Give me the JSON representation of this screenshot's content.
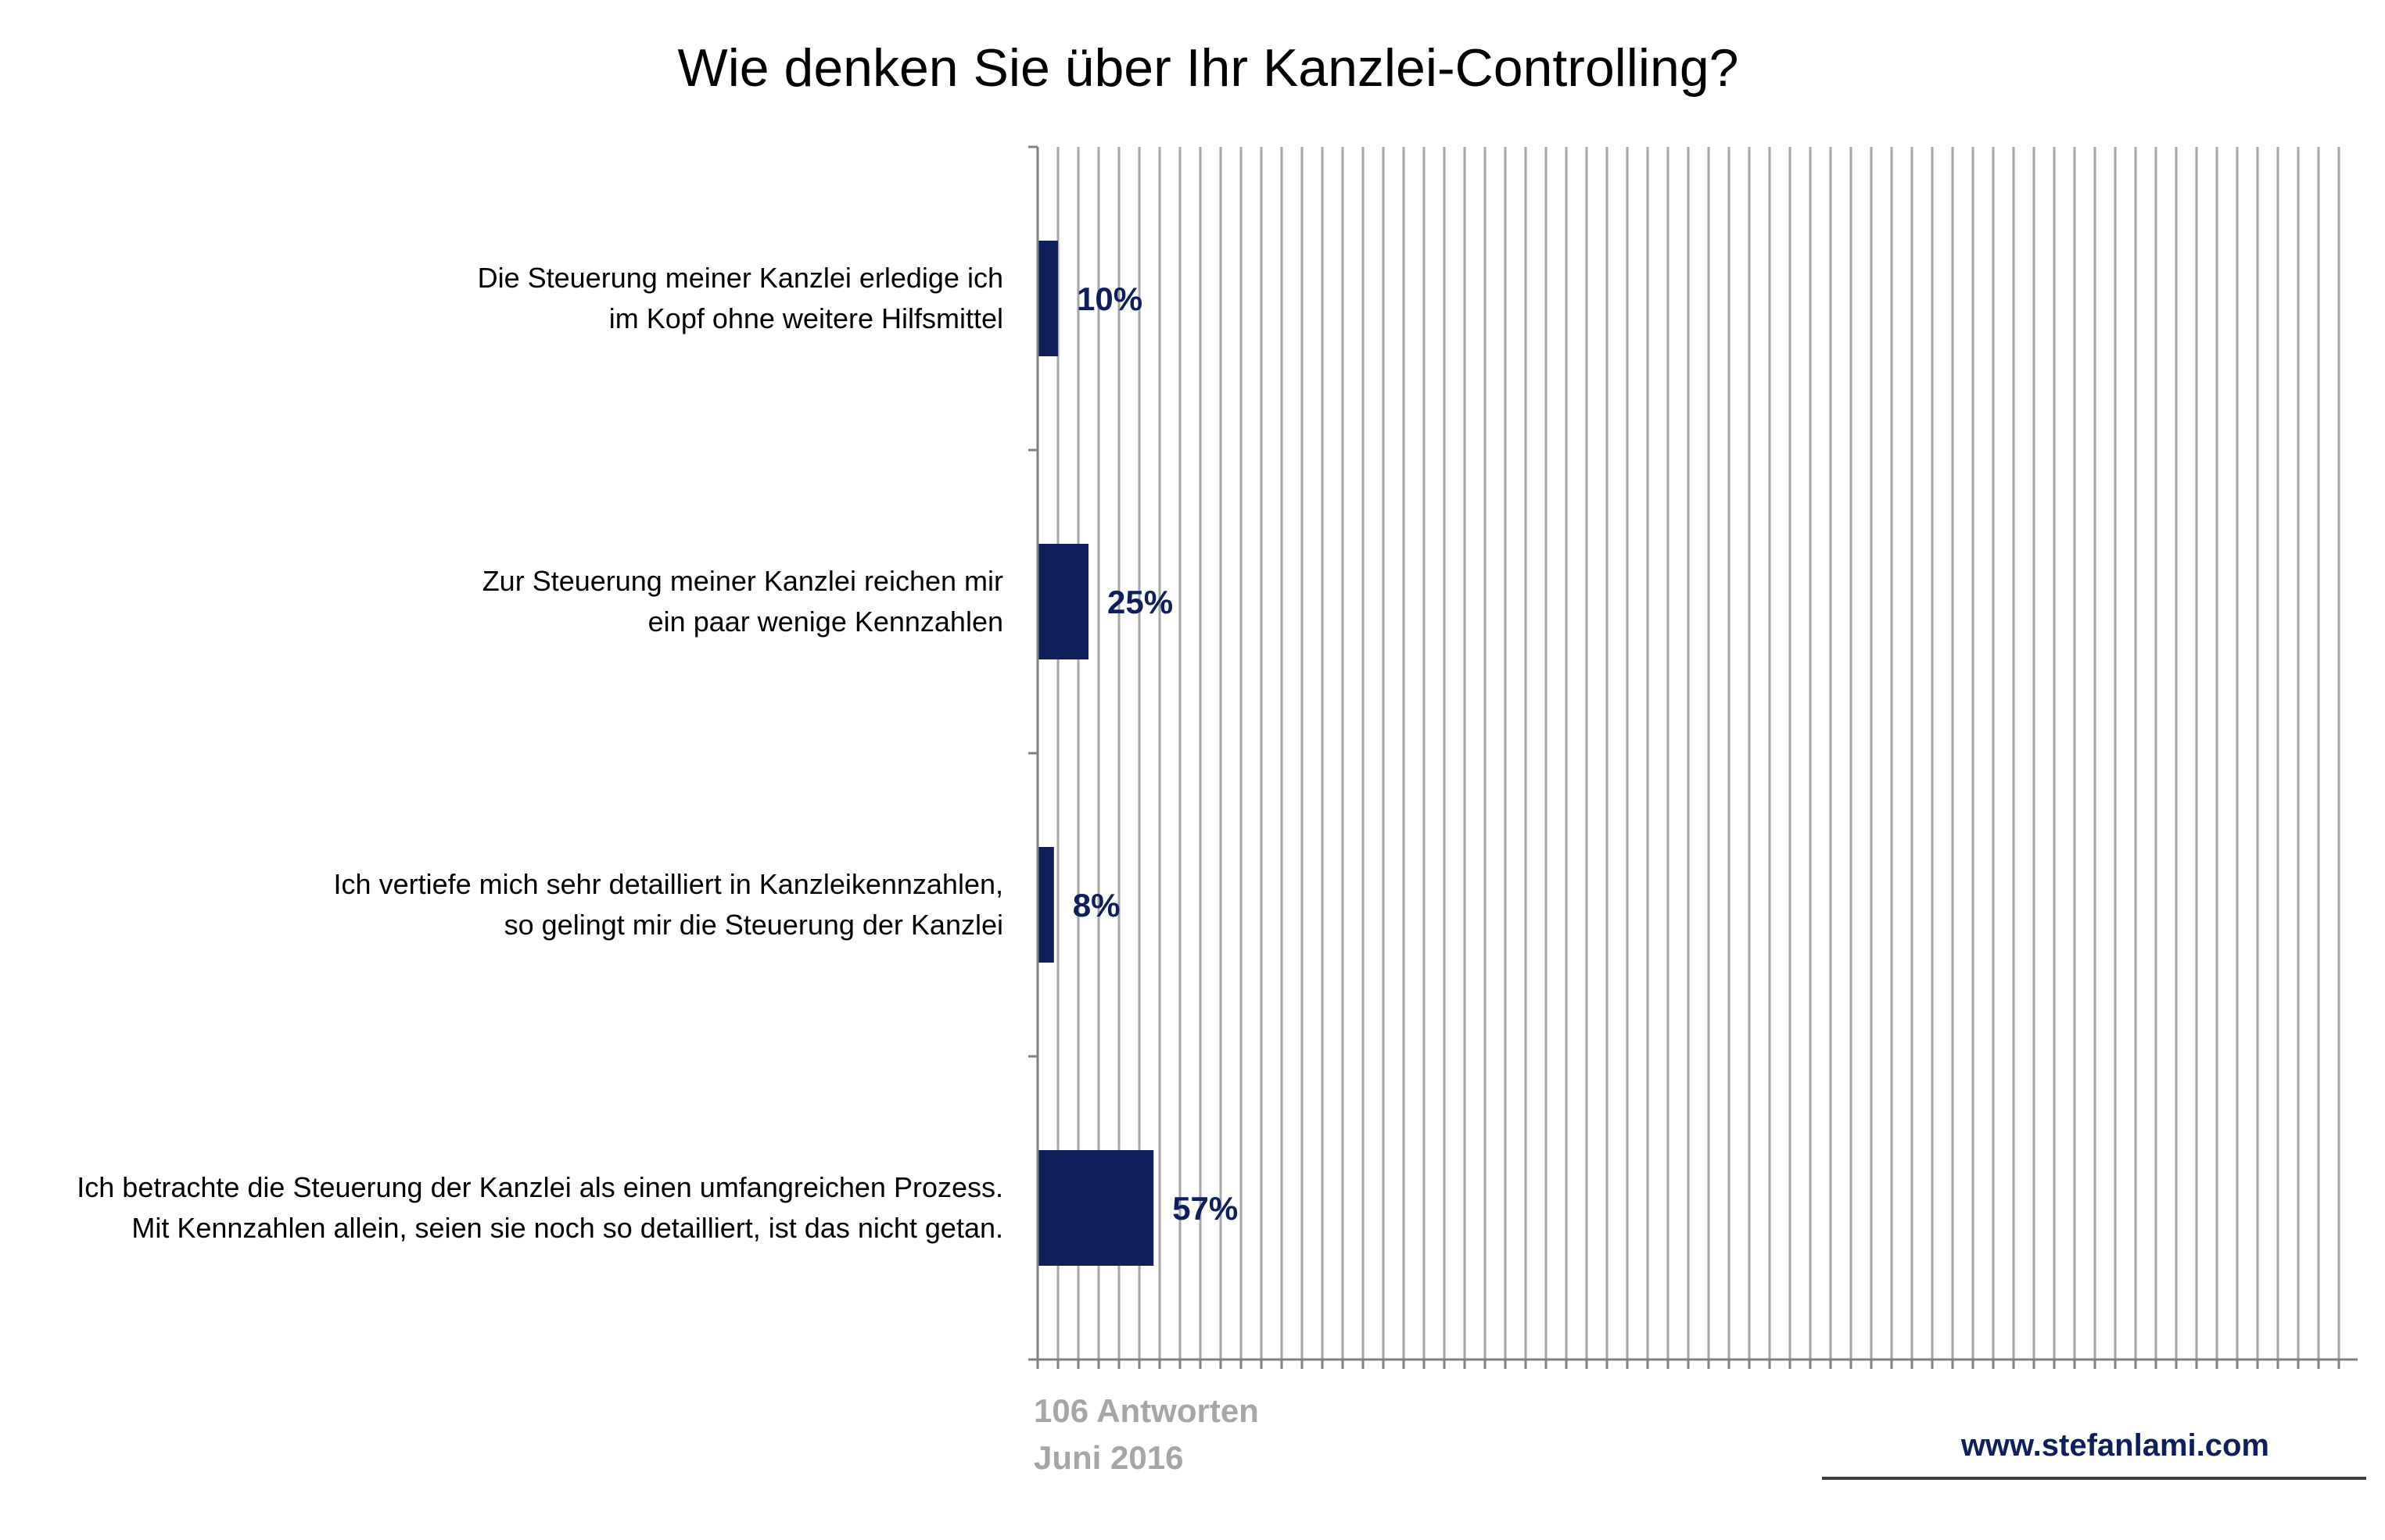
{
  "chart_data": {
    "type": "bar",
    "orientation": "horizontal",
    "title": "Wie denken Sie über Ihr Kanzlei-Controlling?",
    "xlabel": "",
    "ylabel": "",
    "xlim": [
      0,
      65
    ],
    "grid": true,
    "categories": [
      {
        "lines": [
          "Die Steuerung meiner Kanzlei erledige ich",
          "im Kopf ohne weitere Hilfsmittel"
        ],
        "value": 10,
        "value_label": "10%"
      },
      {
        "lines": [
          "Zur Steuerung meiner Kanzlei reichen mir",
          "ein paar wenige Kennzahlen"
        ],
        "value": 25,
        "value_label": "25%"
      },
      {
        "lines": [
          "Ich vertiefe mich sehr detailliert in Kanzleikennzahlen,",
          "so gelingt mir die Steuerung der Kanzlei"
        ],
        "value": 8,
        "value_label": "8%"
      },
      {
        "lines": [
          "Ich betrachte die Steuerung der Kanzlei als einen umfangreichen Prozess.",
          "Mit Kennzahlen allein, seien sie noch so detailliert, ist das nicht getan."
        ],
        "value": 57,
        "value_label": "57%"
      }
    ]
  },
  "footer": {
    "responses": "106 Antworten",
    "date": "Juni 2016",
    "website": "www.stefanlami.com"
  },
  "colors": {
    "bar": "#0f1f5c",
    "value_label": "#0f1f5c",
    "gridline": "#a6a6a6",
    "axis": "#808080",
    "footnote": "#a6a6a6"
  }
}
